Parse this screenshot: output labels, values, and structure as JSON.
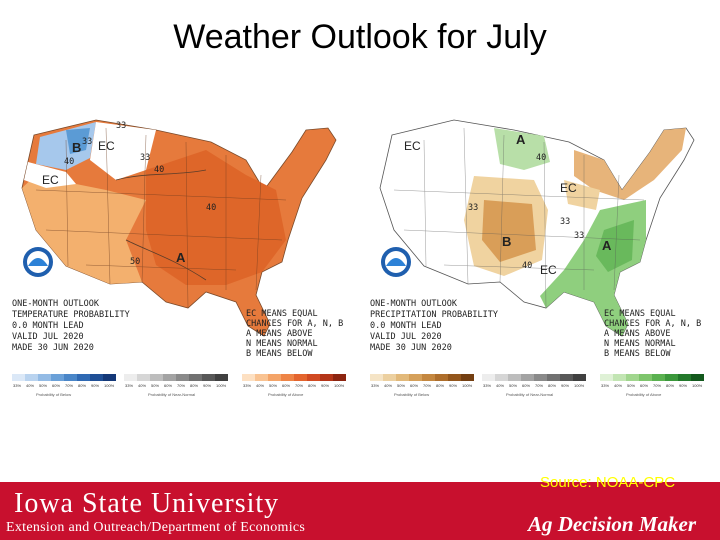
{
  "slide": {
    "title": "Weather Outlook for July"
  },
  "temperature_map": {
    "legend_lines": [
      "ONE-MONTH OUTLOOK",
      "TEMPERATURE PROBABILITY",
      "0.0 MONTH LEAD",
      "VALID JUL 2020",
      "MADE 30 JUN 2020"
    ],
    "key_lines": [
      "EC MEANS EQUAL",
      "CHANCES FOR A, N, B",
      "A MEANS ABOVE",
      "N MEANS NORMAL",
      "B MEANS BELOW"
    ],
    "labels": {
      "ec_north": "EC",
      "ec_west": "EC",
      "b_region": "B",
      "a_region": "A",
      "c40": "40",
      "c33": "33",
      "c50": "50",
      "c33b": "33",
      "c40b": "40",
      "c33c": "33",
      "c40c": "40"
    },
    "below_ticks": [
      "33%",
      "40%",
      "50%",
      "60%",
      "70%",
      "80%",
      "90%",
      "100%"
    ],
    "normal_ticks": [
      "33%",
      "40%",
      "50%",
      "60%",
      "70%",
      "80%",
      "90%",
      "100%"
    ],
    "above_ticks": [
      "33%",
      "40%",
      "50%",
      "60%",
      "70%",
      "80%",
      "90%",
      "100%"
    ],
    "captions": {
      "below": "Probability of Below",
      "normal": "Probability of Near-Normal",
      "above": "Probability of Above"
    },
    "colors": {
      "above_light": "#f4b272",
      "above_mid": "#ec8a45",
      "above_dark": "#e06a2c",
      "below_light": "#a6c8ec",
      "below_mid": "#5b9bd5"
    }
  },
  "precipitation_map": {
    "legend_lines": [
      "ONE-MONTH OUTLOOK",
      "PRECIPITATION PROBABILITY",
      "0.0 MONTH LEAD",
      "VALID JUL 2020",
      "MADE 30 JUN 2020"
    ],
    "key_lines": [
      "EC MEANS EQUAL",
      "CHANCES FOR A, N, B",
      "A MEANS ABOVE",
      "N MEANS NORMAL",
      "B MEANS BELOW"
    ],
    "labels": {
      "ec_west": "EC",
      "a_north": "A",
      "ec_mid": "EC",
      "b_region": "B",
      "ec_south": "EC",
      "a_east": "A",
      "c40": "40",
      "c33": "33",
      "c40b": "40",
      "c33b": "33",
      "c33c": "33"
    },
    "below_ticks": [
      "33%",
      "40%",
      "50%",
      "60%",
      "70%",
      "80%",
      "90%",
      "100%"
    ],
    "normal_ticks": [
      "33%",
      "40%",
      "50%",
      "60%",
      "70%",
      "80%",
      "90%",
      "100%"
    ],
    "above_ticks": [
      "33%",
      "40%",
      "50%",
      "60%",
      "70%",
      "80%",
      "90%",
      "100%"
    ],
    "captions": {
      "below": "Probability of Below",
      "normal": "Probability of Near-Normal",
      "above": "Probability of Above"
    },
    "colors": {
      "wet_light": "#b8dfa8",
      "wet_mid": "#7cc66e",
      "dry_light": "#f0d3a0",
      "dry_mid": "#e0ae6b",
      "dry_dark": "#cf8f44"
    }
  },
  "footer": {
    "university": "Iowa State University",
    "department": "Extension and Outreach/Department of Economics",
    "source": "Source: NOAA-CPC",
    "program": "Ag Decision Maker"
  }
}
